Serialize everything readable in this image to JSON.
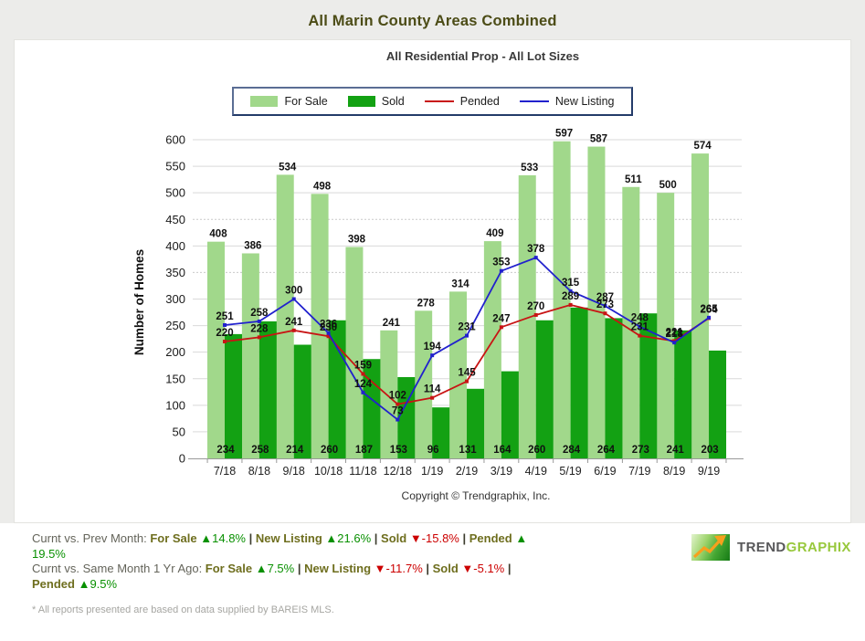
{
  "page": {
    "title": "All Marin County Areas Combined",
    "subtitle": "All Residential Prop - All Lot Sizes",
    "copyright": "Copyright © Trendgraphix, Inc.",
    "footnote": "* All reports presented are based on data supplied by BAREIS MLS."
  },
  "colors": {
    "for_sale": "#a1d88b",
    "sold": "#13a113",
    "pended": "#c81414",
    "new_listing": "#2121cd",
    "grid": "#d9d9d9",
    "axis": "#999999"
  },
  "legend": [
    {
      "label": "For Sale",
      "type": "box",
      "color": "#a1d88b"
    },
    {
      "label": "Sold",
      "type": "box",
      "color": "#13a113"
    },
    {
      "label": "Pended",
      "type": "line",
      "color": "#c81414"
    },
    {
      "label": "New Listing",
      "type": "line",
      "color": "#2121cd"
    }
  ],
  "chart_data": {
    "type": "bar",
    "title": "All Residential Prop - All Lot Sizes",
    "xlabel": "",
    "ylabel": "Number of Homes",
    "ylim": [
      0,
      600
    ],
    "ytick_step": 50,
    "grid": true,
    "dashed_gridlines": [
      350,
      450
    ],
    "legend_position": "top",
    "categories": [
      "7/18",
      "8/18",
      "9/18",
      "10/18",
      "11/18",
      "12/18",
      "1/19",
      "2/19",
      "3/19",
      "4/19",
      "5/19",
      "6/19",
      "7/19",
      "8/19",
      "9/19"
    ],
    "series": [
      {
        "name": "For Sale",
        "type": "bar",
        "color": "#a1d88b",
        "values": [
          408,
          386,
          534,
          498,
          398,
          241,
          278,
          314,
          409,
          533,
          597,
          587,
          511,
          500,
          574
        ]
      },
      {
        "name": "Sold",
        "type": "bar",
        "color": "#13a113",
        "values": [
          234,
          258,
          214,
          260,
          187,
          153,
          96,
          131,
          164,
          260,
          284,
          264,
          273,
          241,
          203
        ]
      },
      {
        "name": "Pended",
        "type": "line",
        "color": "#c81414",
        "values": [
          220,
          228,
          241,
          230,
          159,
          102,
          114,
          145,
          247,
          270,
          289,
          273,
          231,
          221,
          264
        ]
      },
      {
        "name": "New Listing",
        "type": "line",
        "color": "#2121cd",
        "values": [
          251,
          258,
          300,
          236,
          124,
          73,
          194,
          231,
          353,
          378,
          315,
          287,
          248,
          218,
          265
        ]
      }
    ]
  },
  "summary": {
    "rows": [
      [
        {
          "t": "Curnt vs. Prev Month: ",
          "s": "plain"
        },
        {
          "t": "For Sale ",
          "s": "label"
        },
        {
          "t": "▲14.8%",
          "s": "up"
        },
        {
          "t": " | ",
          "s": "sep"
        },
        {
          "t": "New Listing ",
          "s": "label"
        },
        {
          "t": "▲21.6%",
          "s": "up"
        },
        {
          "t": " | ",
          "s": "sep"
        },
        {
          "t": "Sold ",
          "s": "label"
        },
        {
          "t": "▼-15.8%",
          "s": "down"
        },
        {
          "t": " | ",
          "s": "sep"
        },
        {
          "t": "Pended ",
          "s": "label"
        },
        {
          "t": "▲",
          "s": "up"
        },
        {
          "s": "br"
        },
        {
          "t": "19.5%",
          "s": "up"
        }
      ],
      [
        {
          "t": "Curnt vs. Same Month 1 Yr Ago: ",
          "s": "plain"
        },
        {
          "t": "For Sale ",
          "s": "label"
        },
        {
          "t": "▲7.5%",
          "s": "up"
        },
        {
          "t": " | ",
          "s": "sep"
        },
        {
          "t": "New Listing ",
          "s": "label"
        },
        {
          "t": "▼-11.7%",
          "s": "down"
        },
        {
          "t": " | ",
          "s": "sep"
        },
        {
          "t": "Sold ",
          "s": "label"
        },
        {
          "t": "▼-5.1%",
          "s": "down"
        },
        {
          "t": " |",
          "s": "sep"
        },
        {
          "s": "br"
        },
        {
          "t": "Pended ",
          "s": "label"
        },
        {
          "t": "▲9.5%",
          "s": "up"
        }
      ]
    ]
  },
  "logo": {
    "trend": "TREND",
    "graphix": "GRAPHIX",
    "icon": "trend-arrow-icon"
  }
}
